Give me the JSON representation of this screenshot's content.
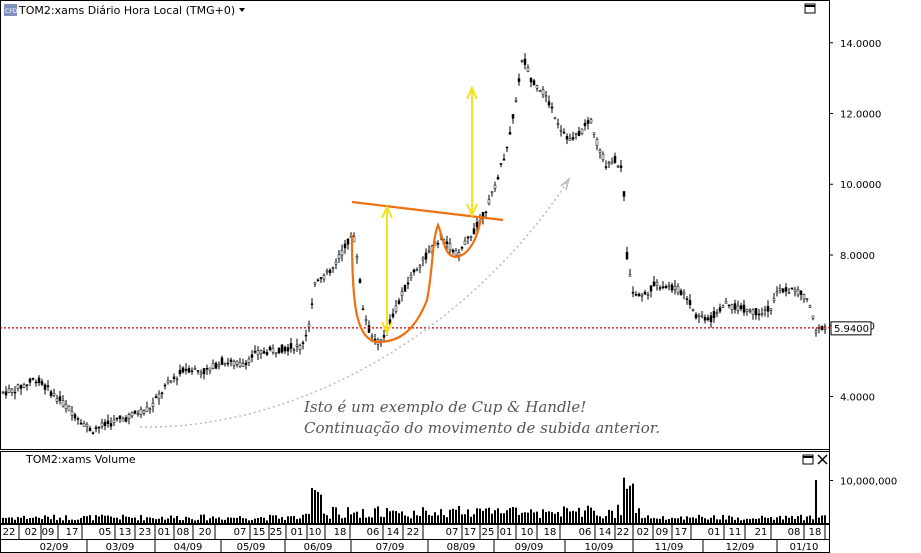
{
  "chart": {
    "title": "TOM2:xams Diário Hora Local (TMG+0)",
    "badge": "CFD",
    "volume_title": "TOM2:xams Volume",
    "annotation_line1": "Isto é um exemplo de Cup & Handle!",
    "annotation_line2": "Continuação do movimento de subida anterior.",
    "last_price_label": "5.9400",
    "colors": {
      "candle": "#000000",
      "cup": "#f07010",
      "arrow": "#f5e020",
      "last_line": "#cc0000",
      "trend_dots": "#bbbbbb"
    }
  },
  "chart_data": {
    "type": "candlestick",
    "title": "TOM2:xams Diário Hora Local (TMG+0)",
    "ylim": [
      2.6,
      14.7
    ],
    "yticks": [
      "4.0000",
      "6.0000",
      "8.0000",
      "10.0000",
      "12.0000",
      "14.0000"
    ],
    "ytick_values": [
      4,
      6,
      8,
      10,
      12,
      14
    ],
    "last_price": 5.94,
    "price_path": [
      [
        0,
        4.1
      ],
      [
        15,
        4.2
      ],
      [
        35,
        4.5
      ],
      [
        55,
        4.0
      ],
      [
        70,
        3.6
      ],
      [
        90,
        3.05
      ],
      [
        110,
        3.25
      ],
      [
        125,
        3.4
      ],
      [
        150,
        3.7
      ],
      [
        165,
        4.3
      ],
      [
        185,
        4.8
      ],
      [
        205,
        4.7
      ],
      [
        220,
        5.0
      ],
      [
        240,
        4.9
      ],
      [
        255,
        5.2
      ],
      [
        270,
        5.3
      ],
      [
        290,
        5.4
      ],
      [
        300,
        5.4
      ],
      [
        308,
        6.0
      ],
      [
        315,
        7.3
      ],
      [
        330,
        7.5
      ],
      [
        345,
        8.3
      ],
      [
        352,
        8.6
      ],
      [
        356,
        8.0
      ],
      [
        362,
        6.5
      ],
      [
        370,
        5.7
      ],
      [
        380,
        5.5
      ],
      [
        390,
        6.2
      ],
      [
        400,
        6.8
      ],
      [
        410,
        7.4
      ],
      [
        420,
        7.8
      ],
      [
        432,
        8.2
      ],
      [
        440,
        8.5
      ],
      [
        450,
        8.2
      ],
      [
        458,
        8.0
      ],
      [
        468,
        8.5
      ],
      [
        478,
        8.9
      ],
      [
        490,
        9.6
      ],
      [
        500,
        10.5
      ],
      [
        510,
        11.5
      ],
      [
        517,
        12.8
      ],
      [
        522,
        13.6
      ],
      [
        530,
        13.0
      ],
      [
        540,
        12.7
      ],
      [
        550,
        12.2
      ],
      [
        560,
        11.6
      ],
      [
        570,
        11.2
      ],
      [
        580,
        11.5
      ],
      [
        590,
        11.8
      ],
      [
        598,
        11.0
      ],
      [
        605,
        10.6
      ],
      [
        615,
        10.7
      ],
      [
        622,
        10.3
      ],
      [
        626,
        8.0
      ],
      [
        632,
        7.0
      ],
      [
        640,
        6.8
      ],
      [
        655,
        7.2
      ],
      [
        670,
        7.1
      ],
      [
        685,
        6.9
      ],
      [
        695,
        6.3
      ],
      [
        710,
        6.2
      ],
      [
        722,
        6.6
      ],
      [
        740,
        6.5
      ],
      [
        755,
        6.4
      ],
      [
        770,
        6.5
      ],
      [
        778,
        7.0
      ],
      [
        795,
        7.0
      ],
      [
        808,
        6.7
      ],
      [
        815,
        5.8
      ],
      [
        822,
        6.0
      ]
    ],
    "volume_ylim": [
      0,
      16000000
    ],
    "volume_tick": "10,000,000",
    "volume_tick_value": 10000000,
    "day_labels": [
      "22",
      "02",
      "09",
      "17",
      "05",
      "13",
      "23",
      "01",
      "08",
      "20",
      "07",
      "15",
      "25",
      "01",
      "10",
      "18",
      "06",
      "14",
      "22",
      "07",
      "17",
      "25",
      "01",
      "10",
      "18",
      "06",
      "14",
      "22",
      "02",
      "09",
      "17",
      "01",
      "11",
      "21",
      "08",
      "18"
    ],
    "day_positions": [
      9,
      31,
      48,
      72,
      105,
      125,
      145,
      164,
      183,
      205,
      240,
      259,
      276,
      297,
      315,
      340,
      373,
      393,
      413,
      452,
      470,
      488,
      506,
      527,
      550,
      585,
      605,
      623,
      643,
      662,
      681,
      714,
      735,
      761,
      794,
      815
    ],
    "month_labels": [
      "02/09",
      "03/09",
      "04/09",
      "05/09",
      "06/09",
      "07/09",
      "08/09",
      "09/09",
      "10/09",
      "11/09",
      "12/09",
      "01/10"
    ],
    "month_positions": [
      54,
      120,
      188,
      251,
      318,
      390,
      461,
      529,
      599,
      669,
      740,
      804
    ],
    "month_dividers": [
      87,
      155,
      221,
      285,
      351,
      428,
      494,
      565,
      633,
      703,
      777
    ]
  }
}
